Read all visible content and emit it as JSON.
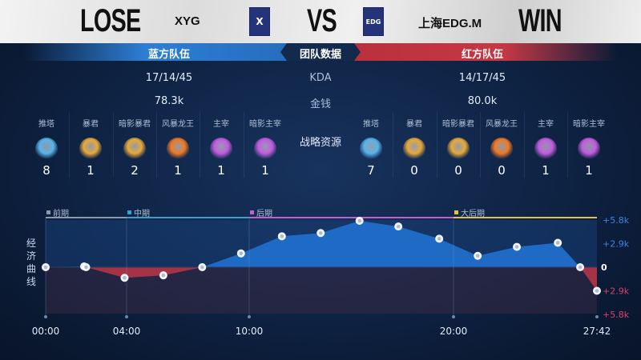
{
  "header": {
    "left_result": "LOSE",
    "left_team": "XYG",
    "vs": "VS",
    "right_team": "上海EDG.M",
    "right_result": "WIN",
    "left_logo": "X",
    "right_logo": "EDG"
  },
  "bar": {
    "blue": "蓝方队伍",
    "center": "团队数据",
    "red": "红方队伍"
  },
  "stats": [
    {
      "label": "KDA",
      "blue": "17/14/45",
      "red": "14/17/45"
    },
    {
      "label": "金钱",
      "blue": "78.3k",
      "red": "80.0k"
    }
  ],
  "objectives": {
    "label": "战略资源",
    "blue": [
      {
        "name": "推塔",
        "value": "8",
        "icon": "tower-icon"
      },
      {
        "name": "暴君",
        "value": "1",
        "icon": "tyrant-icon"
      },
      {
        "name": "暗影暴君",
        "value": "2",
        "icon": "shadow-tyrant-icon"
      },
      {
        "name": "风暴龙王",
        "value": "1",
        "icon": "storm-dragon-icon"
      },
      {
        "name": "主宰",
        "value": "1",
        "icon": "overlord-icon"
      },
      {
        "name": "暗影主宰",
        "value": "1",
        "icon": "shadow-overlord-icon"
      }
    ],
    "red": [
      {
        "name": "推塔",
        "value": "7",
        "icon": "tower-icon"
      },
      {
        "name": "暴君",
        "value": "0",
        "icon": "tyrant-icon"
      },
      {
        "name": "暗影暴君",
        "value": "0",
        "icon": "shadow-tyrant-icon"
      },
      {
        "name": "风暴龙王",
        "value": "0",
        "icon": "storm-dragon-icon"
      },
      {
        "name": "主宰",
        "value": "1",
        "icon": "overlord-icon"
      },
      {
        "name": "暗影主宰",
        "value": "1",
        "icon": "shadow-overlord-icon"
      }
    ]
  },
  "colors": {
    "blue": "#1f6ac4",
    "red": "#b52e45",
    "tower": "#5ab4ea",
    "tyrant": "#e8a93a",
    "dragon": "#f07a22",
    "overlord": "#c45ce0"
  },
  "chart_data": {
    "type": "area",
    "ylabel": "经济曲线",
    "phases": [
      {
        "name": "前期",
        "at": 0,
        "color": "#8a98b0"
      },
      {
        "name": "中期",
        "at": 4,
        "color": "#3aa0c8"
      },
      {
        "name": "后期",
        "at": 10,
        "color": "#c060c8"
      },
      {
        "name": "大后期",
        "at": 20,
        "color": "#e0c050"
      }
    ],
    "x_ticks": [
      {
        "t": 0,
        "label": "00:00"
      },
      {
        "t": 4,
        "label": "04:00"
      },
      {
        "t": 10,
        "label": "10:00"
      },
      {
        "t": 20,
        "label": "20:00"
      },
      {
        "t": 27.7,
        "label": "27:42"
      }
    ],
    "y_ticks": [
      {
        "v": 5.8,
        "label": "+5.8k"
      },
      {
        "v": 2.9,
        "label": "+2.9k"
      },
      {
        "v": 0,
        "label": "0"
      },
      {
        "v": -2.9,
        "label": "+2.9k"
      },
      {
        "v": -5.8,
        "label": "+5.8k"
      }
    ],
    "ylim": [
      -5.8,
      5.8
    ],
    "x_unit": "minutes",
    "series": [
      {
        "values": [
          [
            0,
            0
          ],
          [
            1.9,
            0.1
          ],
          [
            2.0,
            0
          ],
          [
            3.9,
            -1.3
          ],
          [
            5.8,
            -1.0
          ],
          [
            7.7,
            0
          ],
          [
            9.6,
            1.7
          ],
          [
            11.6,
            3.8
          ],
          [
            13.5,
            4.2
          ],
          [
            15.4,
            5.7
          ],
          [
            17.3,
            5.0
          ],
          [
            19.3,
            3.5
          ],
          [
            21.3,
            1.4
          ],
          [
            23.4,
            2.5
          ],
          [
            25.6,
            3.0
          ],
          [
            26.8,
            0
          ],
          [
            27.7,
            -2.9
          ]
        ]
      }
    ]
  }
}
